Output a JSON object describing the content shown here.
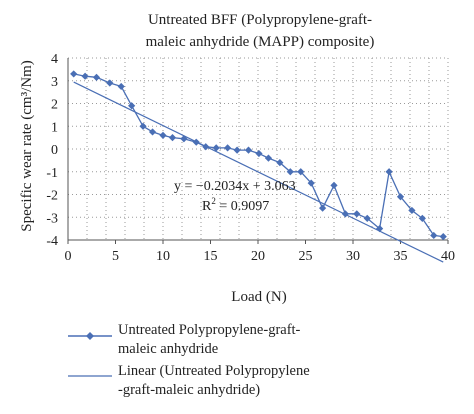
{
  "chart_data": {
    "type": "line",
    "title_line1": "Untreated BFF (Polypropylene-graft-",
    "title_line2": "maleic anhydride (MAPP) composite)",
    "xlabel": "Load (N)",
    "ylabel": "Specific wear rate (cm³/Nm)",
    "xlim": [
      0,
      40
    ],
    "ylim": [
      -4,
      4
    ],
    "x_ticks": [
      0,
      5,
      10,
      15,
      20,
      25,
      30,
      35,
      40
    ],
    "y_ticks": [
      4,
      3,
      2,
      1,
      0,
      -1,
      -2,
      -3,
      -4
    ],
    "grid": "dotted",
    "series": [
      {
        "name": "Untreated Polypropylene-graft-maleic anhydride",
        "color": "#4a6fb5",
        "marker": "diamond",
        "x": [
          0.6,
          1.8,
          3.0,
          4.4,
          5.6,
          6.7,
          7.9,
          8.9,
          10.0,
          11.0,
          12.2,
          13.5,
          14.5,
          15.6,
          16.8,
          17.8,
          19.0,
          20.1,
          21.1,
          22.3,
          23.4,
          24.5,
          25.6,
          26.8,
          28.0,
          29.2,
          30.4,
          31.5,
          32.8,
          33.8,
          35.0,
          36.2,
          37.3,
          38.5,
          39.5
        ],
        "y": [
          3.3,
          3.2,
          3.15,
          2.9,
          2.75,
          1.9,
          1.0,
          0.75,
          0.6,
          0.5,
          0.45,
          0.3,
          0.1,
          0.05,
          0.05,
          -0.05,
          -0.05,
          -0.2,
          -0.4,
          -0.6,
          -1.0,
          -1.0,
          -1.5,
          -2.6,
          -1.6,
          -2.85,
          -2.85,
          -3.05,
          -3.5,
          -1.0,
          -2.1,
          -2.7,
          -3.05,
          -3.8,
          -3.85
        ]
      },
      {
        "name": "Linear (Untreated Polypropylene -graft-maleic anhydride)",
        "color": "#4a6fb5",
        "type": "trendline",
        "slope": -0.2034,
        "intercept": 3.063,
        "x_range": [
          0.6,
          39.5
        ]
      }
    ],
    "annotations": {
      "equation": "y = −0.2034x + 3.063",
      "r2_prefix": "R",
      "r2_superscript": "2",
      "r2_value": " = 0.9097"
    },
    "legend": {
      "placement": "bottom",
      "series1_line1": "Untreated Polypropylene-graft-",
      "series1_line2": "maleic anhydride",
      "series2_line1": "Linear (Untreated Polypropylene",
      "series2_line2": "-graft-maleic anhydride)"
    }
  }
}
